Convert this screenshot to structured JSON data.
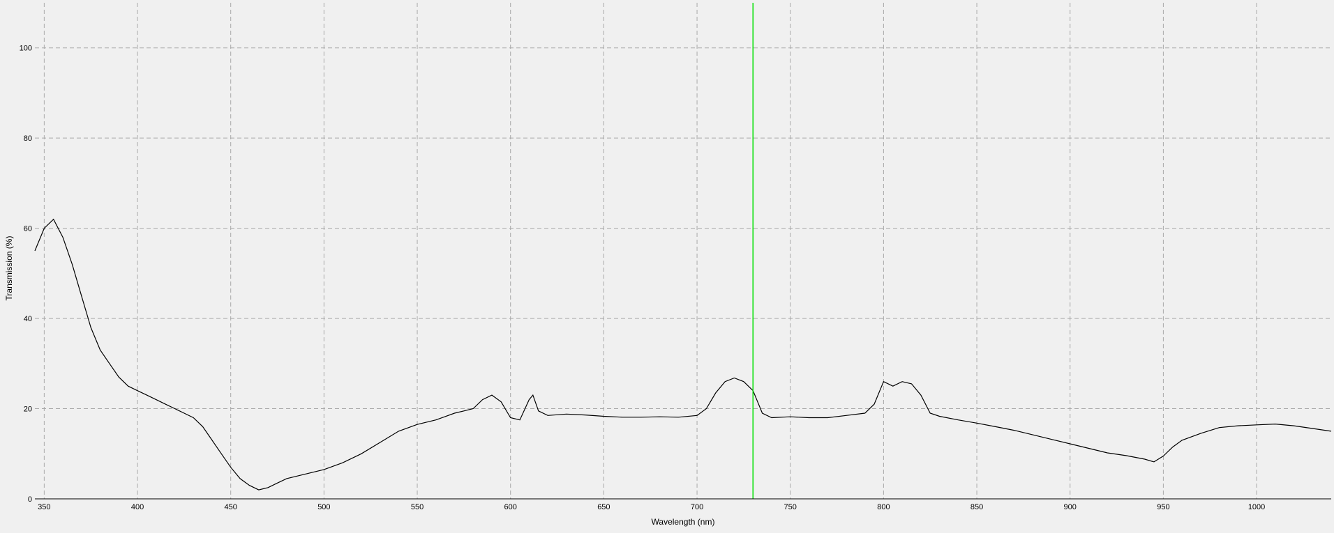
{
  "chart_data": {
    "type": "line",
    "title": "",
    "xlabel": "Wavelength (nm)",
    "ylabel": "Transmission (%)",
    "xlim": [
      345,
      1040
    ],
    "ylim": [
      0,
      110
    ],
    "grid": true,
    "x_ticks": [
      350,
      400,
      450,
      500,
      550,
      600,
      650,
      700,
      750,
      800,
      850,
      900,
      950,
      1000
    ],
    "y_ticks": [
      0,
      20,
      40,
      60,
      80,
      100
    ],
    "marker": {
      "wavelength": 730,
      "color": "#00e000"
    },
    "series": [
      {
        "name": "Transmission",
        "color": "#000000",
        "x": [
          345,
          350,
          355,
          360,
          365,
          370,
          375,
          380,
          385,
          390,
          395,
          400,
          405,
          410,
          415,
          420,
          425,
          430,
          435,
          440,
          445,
          450,
          455,
          460,
          465,
          470,
          475,
          480,
          490,
          500,
          510,
          520,
          530,
          540,
          550,
          560,
          570,
          575,
          580,
          585,
          590,
          595,
          600,
          605,
          610,
          612,
          615,
          620,
          630,
          640,
          650,
          660,
          670,
          680,
          690,
          700,
          705,
          710,
          715,
          720,
          725,
          730,
          735,
          740,
          750,
          760,
          770,
          780,
          790,
          795,
          800,
          805,
          810,
          815,
          820,
          825,
          830,
          840,
          850,
          860,
          870,
          880,
          890,
          900,
          910,
          920,
          930,
          940,
          945,
          950,
          955,
          960,
          970,
          980,
          990,
          1000,
          1010,
          1020,
          1030,
          1040
        ],
        "y": [
          55,
          60,
          62,
          58,
          52,
          45,
          38,
          33,
          30,
          27,
          25,
          24,
          23,
          22,
          21,
          20,
          19,
          18,
          16,
          13,
          10,
          7,
          4.5,
          3,
          2,
          2.5,
          3.5,
          4.5,
          5.5,
          6.5,
          8,
          10,
          12.5,
          15,
          16.5,
          17.5,
          19,
          19.5,
          20,
          22,
          23,
          21.5,
          18,
          17.5,
          22,
          23,
          19.5,
          18.5,
          18.8,
          18.6,
          18.3,
          18.1,
          18.1,
          18.2,
          18.1,
          18.5,
          20,
          23.5,
          26,
          26.8,
          26,
          24,
          19,
          18,
          18.2,
          18,
          18,
          18.5,
          19,
          21,
          26,
          25,
          26,
          25.5,
          23,
          19,
          18.3,
          17.5,
          16.8,
          16,
          15.2,
          14.2,
          13.2,
          12.2,
          11.2,
          10.2,
          9.6,
          8.8,
          8.2,
          9.5,
          11.5,
          13,
          14.5,
          15.8,
          16.2,
          16.4,
          16.6,
          16.2,
          15.6,
          15
        ]
      }
    ]
  }
}
